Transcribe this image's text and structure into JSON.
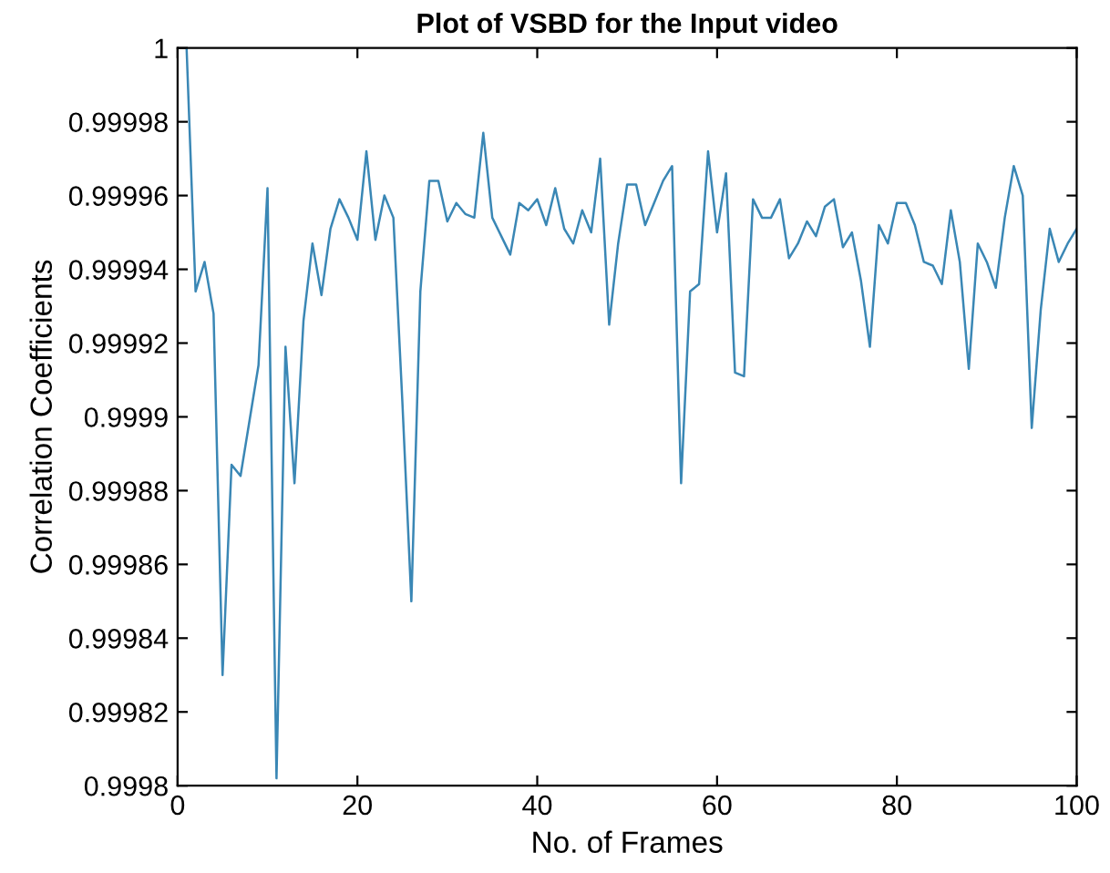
{
  "chart_data": {
    "type": "line",
    "title": "Plot of VSBD for the Input video",
    "xlabel": "No. of Frames",
    "ylabel": "Correlation Coefficients",
    "x": [
      1,
      2,
      3,
      4,
      5,
      6,
      7,
      8,
      9,
      10,
      11,
      12,
      13,
      14,
      15,
      16,
      17,
      18,
      19,
      20,
      21,
      22,
      23,
      24,
      25,
      26,
      27,
      28,
      29,
      30,
      31,
      32,
      33,
      34,
      35,
      36,
      37,
      38,
      39,
      40,
      41,
      42,
      43,
      44,
      45,
      46,
      47,
      48,
      49,
      50,
      51,
      52,
      53,
      54,
      55,
      56,
      57,
      58,
      59,
      60,
      61,
      62,
      63,
      64,
      65,
      66,
      67,
      68,
      69,
      70,
      71,
      72,
      73,
      74,
      75,
      76,
      77,
      78,
      79,
      80,
      81,
      82,
      83,
      84,
      85,
      86,
      87,
      88,
      89,
      90,
      91,
      92,
      93,
      94,
      95,
      96,
      97,
      98,
      99,
      100
    ],
    "series": [
      {
        "color": "#3a87b5",
        "values": [
          1.0,
          0.999934,
          0.999942,
          0.999928,
          0.99983,
          0.999887,
          0.999884,
          0.999899,
          0.999914,
          0.999962,
          0.999802,
          0.999919,
          0.999882,
          0.999926,
          0.999947,
          0.999933,
          0.999951,
          0.999959,
          0.999954,
          0.999948,
          0.999972,
          0.999948,
          0.99996,
          0.999954,
          0.999904,
          0.99985,
          0.999934,
          0.999964,
          0.999964,
          0.999953,
          0.999958,
          0.999955,
          0.999954,
          0.999977,
          0.999954,
          0.999949,
          0.999944,
          0.999958,
          0.999956,
          0.999959,
          0.999952,
          0.999962,
          0.999951,
          0.999947,
          0.999956,
          0.99995,
          0.99997,
          0.999925,
          0.999947,
          0.999963,
          0.999963,
          0.999952,
          0.999958,
          0.999964,
          0.999968,
          0.999882,
          0.999934,
          0.999936,
          0.999972,
          0.99995,
          0.999966,
          0.999912,
          0.999911,
          0.999959,
          0.999954,
          0.999954,
          0.999959,
          0.999943,
          0.999947,
          0.999953,
          0.999949,
          0.999957,
          0.999959,
          0.999946,
          0.99995,
          0.999937,
          0.999919,
          0.999952,
          0.999947,
          0.999958,
          0.999958,
          0.999952,
          0.999942,
          0.999941,
          0.999936,
          0.999956,
          0.999942,
          0.999913,
          0.999947,
          0.999942,
          0.999935,
          0.999954,
          0.999968,
          0.99996,
          0.999897,
          0.999929,
          0.999951,
          0.999942,
          0.999947,
          0.999951
        ]
      }
    ],
    "xlim": [
      0,
      100
    ],
    "xticks": [
      0,
      20,
      40,
      60,
      80,
      100
    ],
    "ylim": [
      0.9998,
      1
    ],
    "yticks": [
      0.9998,
      0.99982,
      0.99984,
      0.99986,
      0.99988,
      0.9999,
      0.99992,
      0.99994,
      0.99996,
      0.99998,
      1
    ],
    "grid": false,
    "marker": "none",
    "line_style": "solid"
  }
}
